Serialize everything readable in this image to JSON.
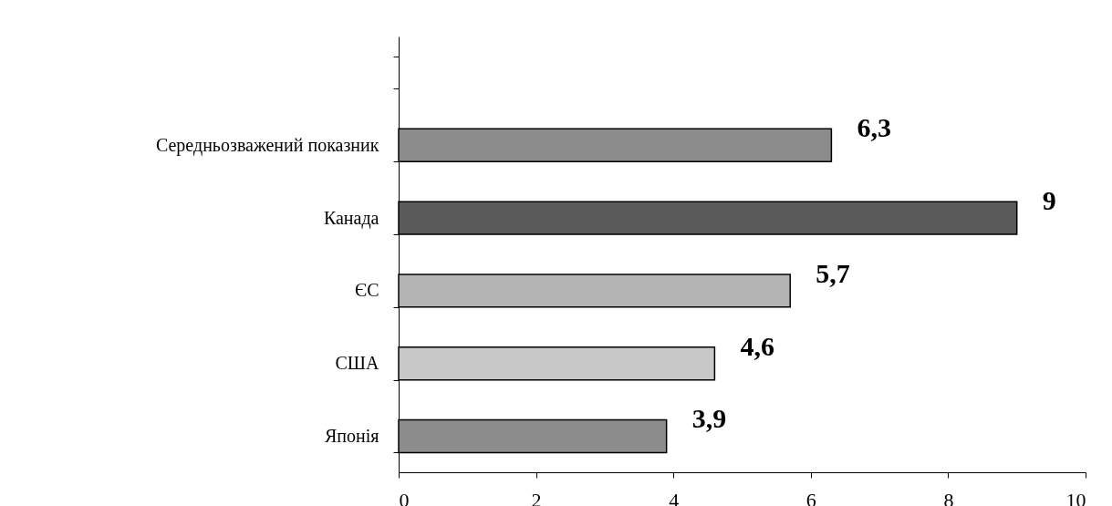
{
  "chart_data": {
    "type": "bar",
    "orientation": "horizontal",
    "categories": [
      null,
      "Середньозважений показник",
      "Канада",
      "ЄС",
      "США",
      "Японія"
    ],
    "values": [
      null,
      6.3,
      9,
      5.7,
      4.6,
      3.9
    ],
    "value_labels": [
      null,
      "6,3",
      "9",
      "5,7",
      "4,6",
      "3,9"
    ],
    "colors": [
      "#ffffff",
      "#8c8c8c",
      "#5a5a5a",
      "#b4b4b4",
      "#c8c8c8",
      "#8c8c8c"
    ],
    "xlim": [
      0,
      10
    ],
    "xticks": [
      0,
      2,
      4,
      6,
      8,
      10
    ],
    "grid": false
  }
}
